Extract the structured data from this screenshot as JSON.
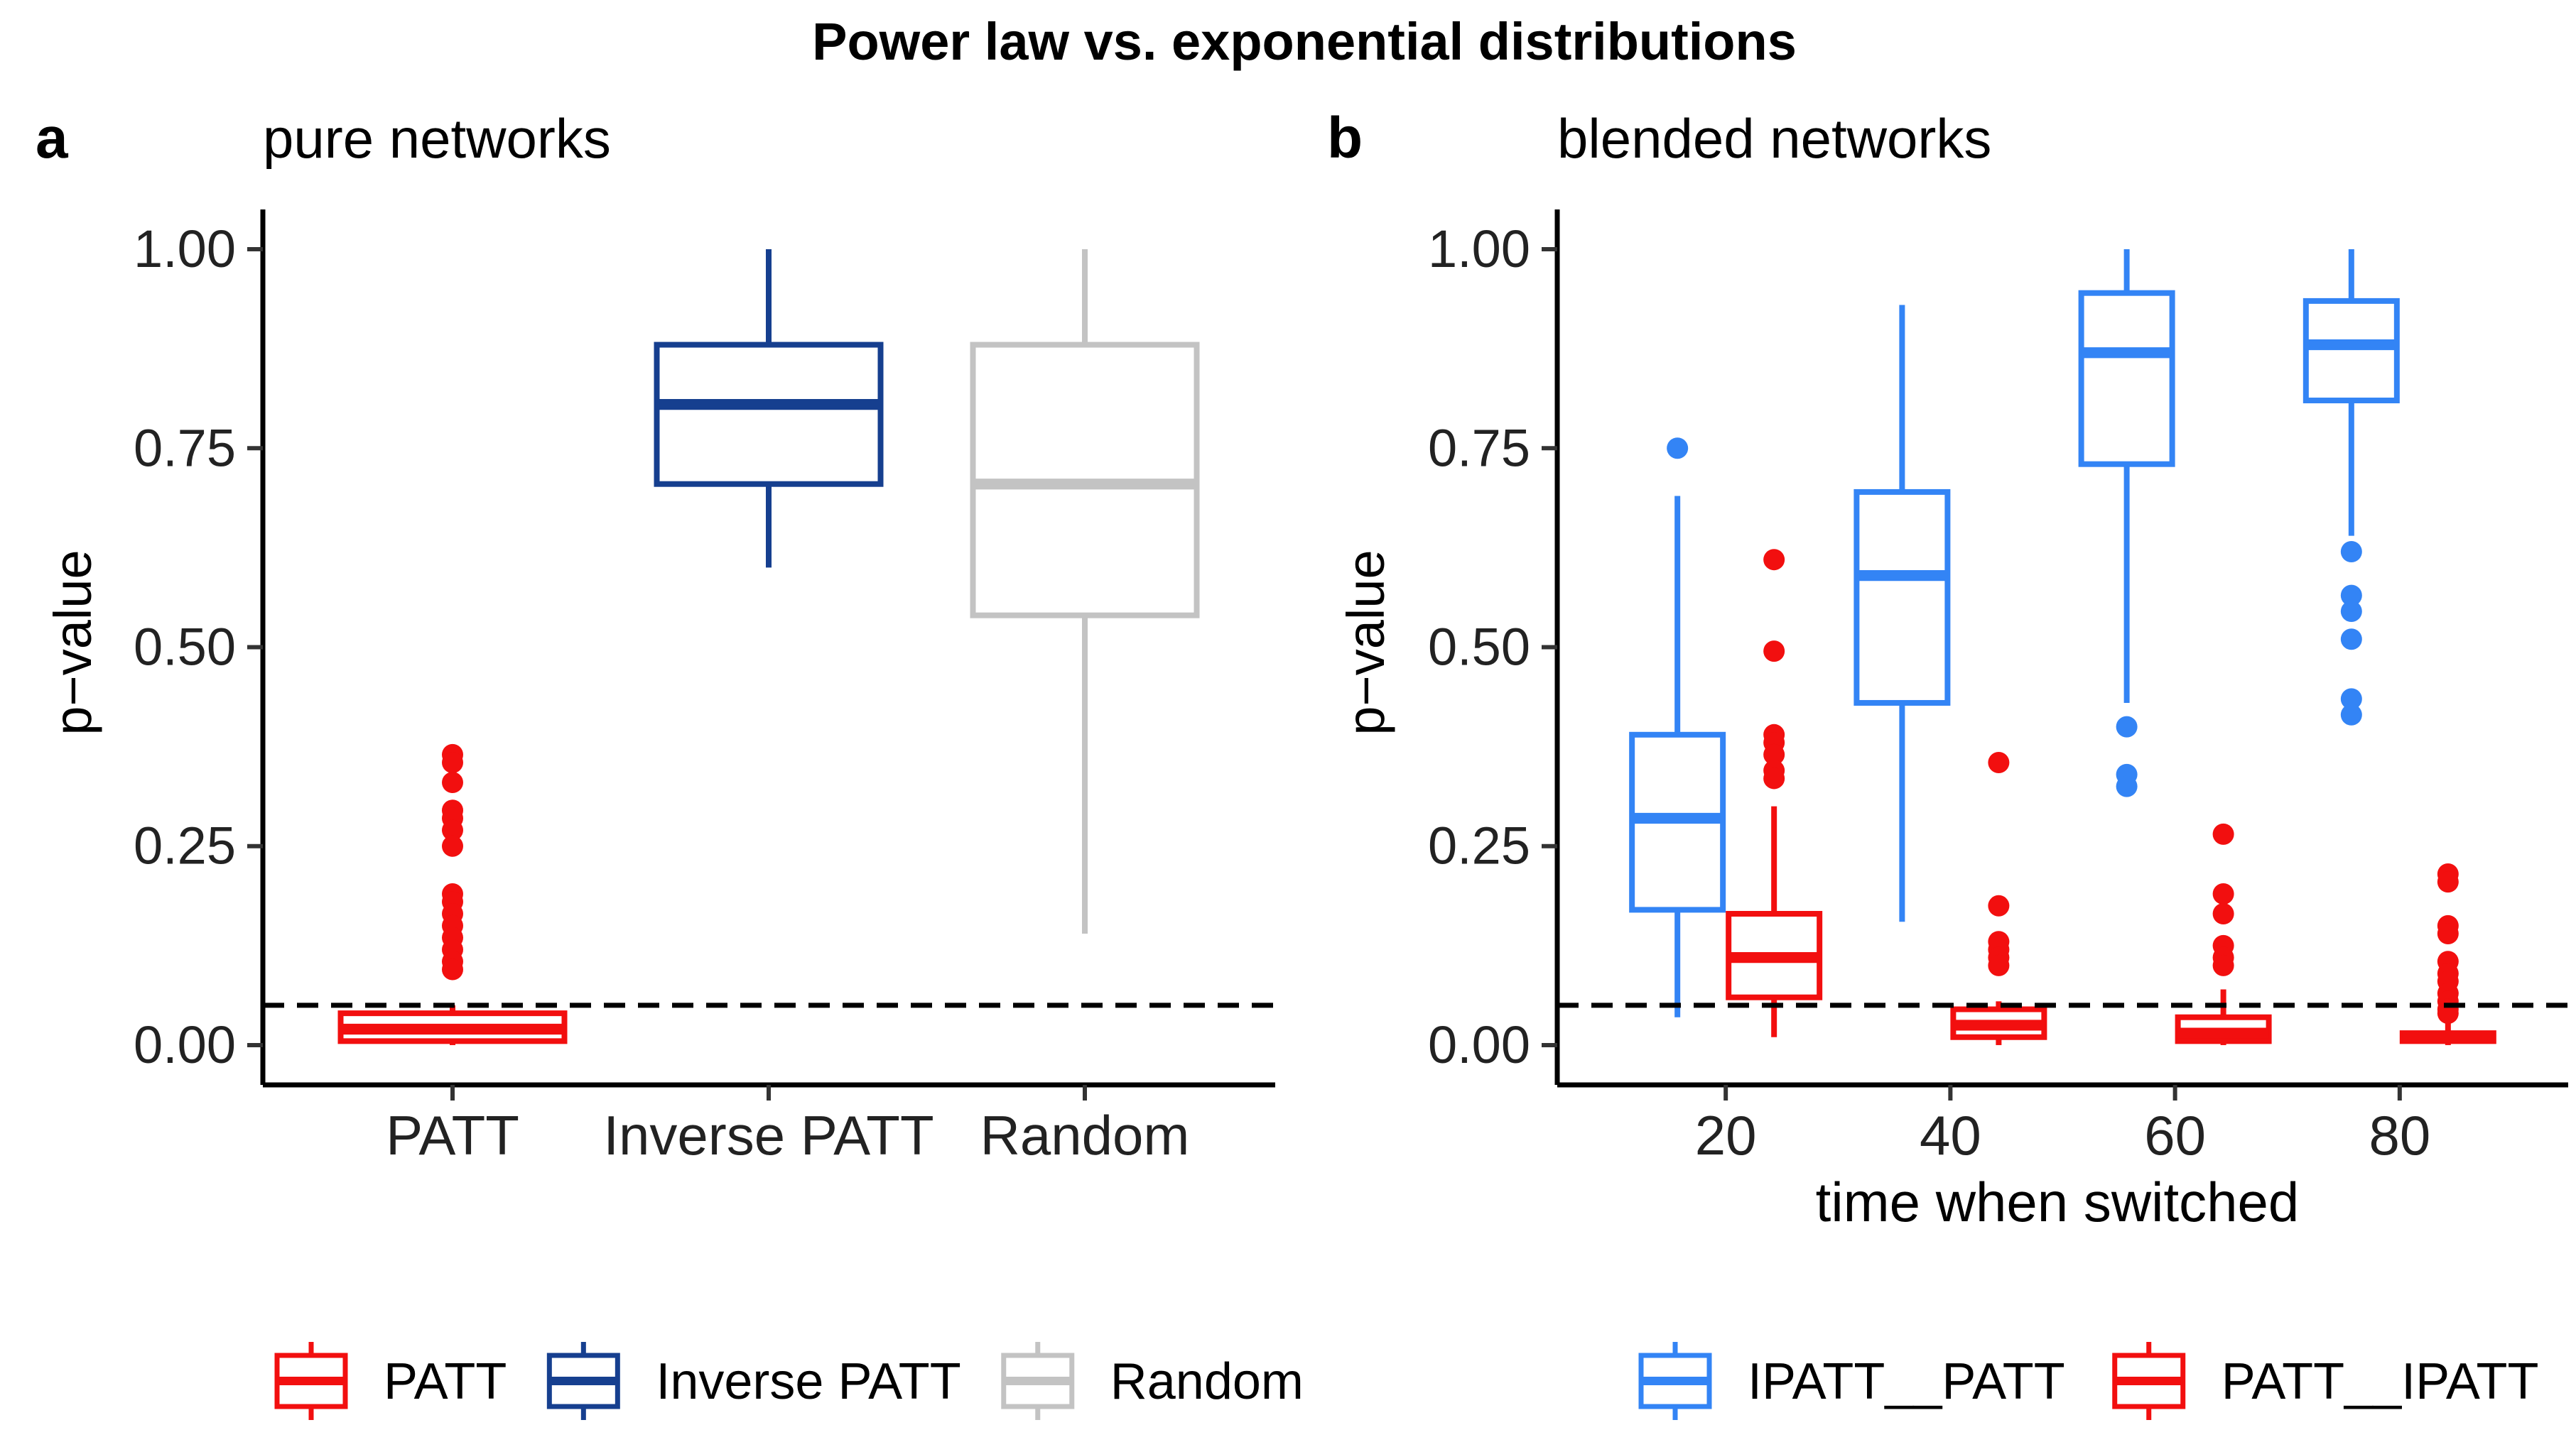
{
  "figure": {
    "title": "Power law vs. exponential distributions"
  },
  "colors": {
    "PATT": "#f20f0f",
    "Inverse PATT": "#163f8f",
    "Random": "#c3c3c3",
    "IPATT__PATT": "#3384f5",
    "PATT__IPATT": "#f20f0f",
    "axis": "#000000"
  },
  "chart_data": [
    {
      "id": "a",
      "panel_label": "a",
      "subtitle": "pure networks",
      "type": "box",
      "xlabel": "",
      "ylabel": "p−value",
      "ylim": [
        -0.05,
        1.05
      ],
      "yticks": [
        "0.00",
        "0.25",
        "0.50",
        "0.75",
        "1.00"
      ],
      "ytick_values": [
        0,
        0.25,
        0.5,
        0.75,
        1.0
      ],
      "categories": [
        "PATT",
        "Inverse PATT",
        "Random"
      ],
      "reference_line": 0.05,
      "boxes": [
        {
          "category": "PATT",
          "group": "PATT",
          "lower_whisker": 0.0,
          "q1": 0.005,
          "median": 0.02,
          "q3": 0.04,
          "upper_whisker": 0.05,
          "outliers": [
            0.365,
            0.355,
            0.33,
            0.295,
            0.285,
            0.27,
            0.25,
            0.19,
            0.18,
            0.165,
            0.15,
            0.135,
            0.12,
            0.105,
            0.095
          ]
        },
        {
          "category": "Inverse PATT",
          "group": "Inverse PATT",
          "lower_whisker": 0.6,
          "q1": 0.705,
          "median": 0.805,
          "q3": 0.88,
          "upper_whisker": 1.0,
          "outliers": []
        },
        {
          "category": "Random",
          "group": "Random",
          "lower_whisker": 0.14,
          "q1": 0.54,
          "median": 0.705,
          "q3": 0.88,
          "upper_whisker": 1.0,
          "outliers": []
        }
      ],
      "legend": [
        {
          "label": "PATT",
          "color_key": "PATT"
        },
        {
          "label": "Inverse PATT",
          "color_key": "Inverse PATT"
        },
        {
          "label": "Random",
          "color_key": "Random"
        }
      ],
      "legend_position": "bottom"
    },
    {
      "id": "b",
      "panel_label": "b",
      "subtitle": "blended networks",
      "type": "box",
      "xlabel": "time when switched",
      "ylabel": "p−value",
      "ylim": [
        -0.05,
        1.05
      ],
      "xlim": [
        5,
        95
      ],
      "yticks": [
        "0.00",
        "0.25",
        "0.50",
        "0.75",
        "1.00"
      ],
      "ytick_values": [
        0,
        0.25,
        0.5,
        0.75,
        1.0
      ],
      "xticks": [
        "20",
        "40",
        "60",
        "80"
      ],
      "xtick_values": [
        20,
        40,
        60,
        80
      ],
      "reference_line": 0.05,
      "boxes": [
        {
          "x": 20,
          "group": "IPATT__PATT",
          "lower_whisker": 0.035,
          "q1": 0.17,
          "median": 0.285,
          "q3": 0.39,
          "upper_whisker": 0.69,
          "outliers": [
            0.75
          ]
        },
        {
          "x": 20,
          "group": "PATT__IPATT",
          "lower_whisker": 0.01,
          "q1": 0.06,
          "median": 0.11,
          "q3": 0.165,
          "upper_whisker": 0.3,
          "outliers": [
            0.61,
            0.495,
            0.39,
            0.38,
            0.365,
            0.345,
            0.335
          ]
        },
        {
          "x": 40,
          "group": "IPATT__PATT",
          "lower_whisker": 0.155,
          "q1": 0.43,
          "median": 0.59,
          "q3": 0.695,
          "upper_whisker": 0.93,
          "outliers": []
        },
        {
          "x": 40,
          "group": "PATT__IPATT",
          "lower_whisker": 0.0,
          "q1": 0.01,
          "median": 0.025,
          "q3": 0.045,
          "upper_whisker": 0.055,
          "outliers": [
            0.355,
            0.175,
            0.13,
            0.12,
            0.11,
            0.1
          ]
        },
        {
          "x": 60,
          "group": "IPATT__PATT",
          "lower_whisker": 0.43,
          "q1": 0.73,
          "median": 0.87,
          "q3": 0.945,
          "upper_whisker": 1.0,
          "outliers": [
            0.4,
            0.34,
            0.325
          ]
        },
        {
          "x": 60,
          "group": "PATT__IPATT",
          "lower_whisker": 0.0,
          "q1": 0.005,
          "median": 0.015,
          "q3": 0.035,
          "upper_whisker": 0.07,
          "outliers": [
            0.265,
            0.19,
            0.165,
            0.125,
            0.11,
            0.1
          ]
        },
        {
          "x": 80,
          "group": "IPATT__PATT",
          "lower_whisker": 0.64,
          "q1": 0.81,
          "median": 0.88,
          "q3": 0.935,
          "upper_whisker": 1.0,
          "outliers": [
            0.62,
            0.565,
            0.545,
            0.51,
            0.435,
            0.415
          ]
        },
        {
          "x": 80,
          "group": "PATT__IPATT",
          "lower_whisker": 0.0,
          "q1": 0.005,
          "median": 0.01,
          "q3": 0.015,
          "upper_whisker": 0.03,
          "outliers": [
            0.215,
            0.205,
            0.15,
            0.14,
            0.105,
            0.09,
            0.08,
            0.065,
            0.055,
            0.045,
            0.04
          ]
        }
      ],
      "legend": [
        {
          "label": "IPATT__PATT",
          "color_key": "IPATT__PATT"
        },
        {
          "label": "PATT__IPATT",
          "color_key": "PATT__IPATT"
        }
      ],
      "legend_position": "bottom"
    }
  ]
}
